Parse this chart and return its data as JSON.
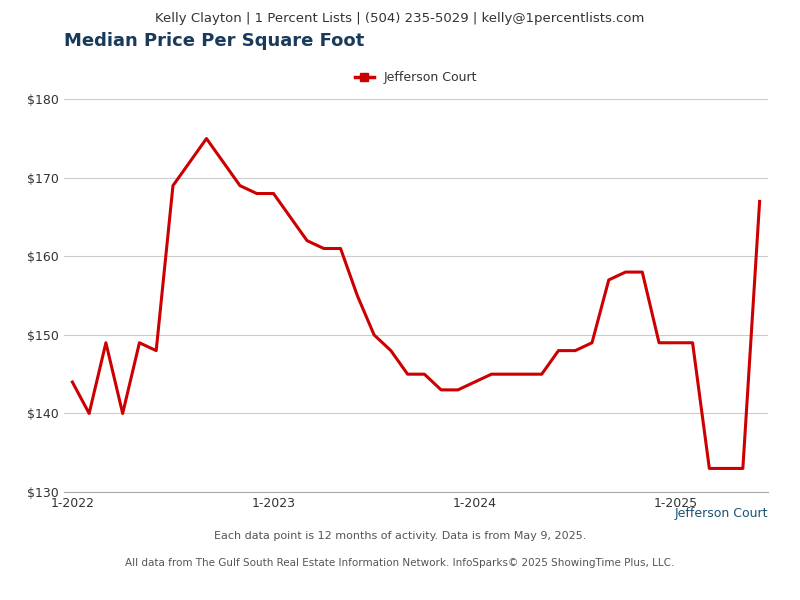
{
  "title": "Median Price Per Square Foot",
  "header": "Kelly Clayton | 1 Percent Lists | (504) 235-5029 | kelly@1percentlists.com",
  "footer1": "Each data point is 12 months of activity. Data is from May 9, 2025.",
  "footer2": "All data from The Gulf South Real Estate Information Network. InfoSparks© 2025 ShowingTime Plus, LLC.",
  "legend_label": "Jefferson Court",
  "line_color": "#cc0000",
  "line_width": 2.2,
  "background_color": "#ffffff",
  "header_bg": "#e8e8e8",
  "ylabel_color": "#1a3a5c",
  "title_color": "#1a3a5c",
  "xlabel_color": "#555555",
  "ylim": [
    130,
    185
  ],
  "yticks": [
    130,
    140,
    150,
    160,
    170,
    180
  ],
  "x_data": [
    0,
    1,
    2,
    3,
    4,
    5,
    6,
    7,
    8,
    9,
    10,
    11,
    12,
    13,
    14,
    15,
    16,
    17,
    18,
    19,
    20,
    21,
    22,
    23,
    24,
    25,
    26,
    27,
    28,
    29,
    30,
    31,
    32,
    33,
    34,
    35,
    36,
    37,
    38,
    39,
    40,
    41
  ],
  "y_data": [
    144,
    140,
    149,
    140,
    149,
    148,
    169,
    172,
    175,
    172,
    169,
    168,
    168,
    165,
    162,
    161,
    161,
    155,
    150,
    148,
    145,
    145,
    143,
    143,
    144,
    145,
    145,
    145,
    145,
    148,
    148,
    149,
    157,
    158,
    158,
    149,
    149,
    149,
    133,
    133,
    133,
    167
  ],
  "x_tick_positions": [
    0,
    12,
    24,
    36
  ],
  "x_tick_labels": [
    "1-2022",
    "1-2023",
    "1-2024",
    "1-2025"
  ]
}
